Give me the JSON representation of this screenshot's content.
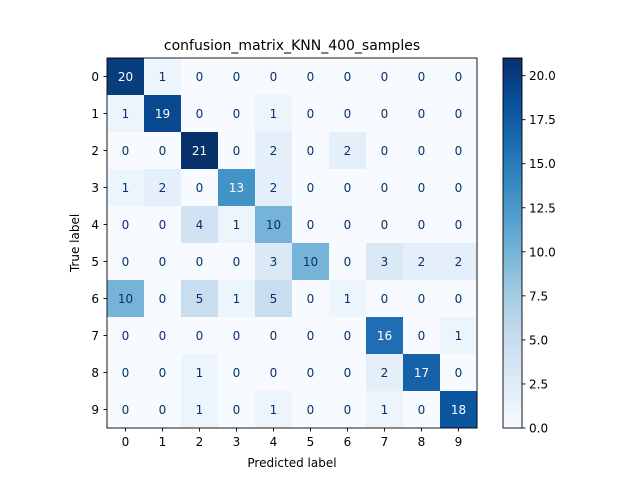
{
  "chart_data": {
    "type": "heatmap",
    "title": "confusion_matrix_KNN_400_samples",
    "xlabel": "Predicted label",
    "ylabel": "True label",
    "x_categories": [
      "0",
      "1",
      "2",
      "3",
      "4",
      "5",
      "6",
      "7",
      "8",
      "9"
    ],
    "y_categories": [
      "0",
      "1",
      "2",
      "3",
      "4",
      "5",
      "6",
      "7",
      "8",
      "9"
    ],
    "matrix": [
      [
        20,
        1,
        0,
        0,
        0,
        0,
        0,
        0,
        0,
        0
      ],
      [
        1,
        19,
        0,
        0,
        1,
        0,
        0,
        0,
        0,
        0
      ],
      [
        0,
        0,
        21,
        0,
        2,
        0,
        2,
        0,
        0,
        0
      ],
      [
        1,
        2,
        0,
        13,
        2,
        0,
        0,
        0,
        0,
        0
      ],
      [
        0,
        0,
        4,
        1,
        10,
        0,
        0,
        0,
        0,
        0
      ],
      [
        0,
        0,
        0,
        0,
        3,
        10,
        0,
        3,
        2,
        2
      ],
      [
        10,
        0,
        5,
        1,
        5,
        0,
        1,
        0,
        0,
        0
      ],
      [
        0,
        0,
        0,
        0,
        0,
        0,
        0,
        16,
        0,
        1
      ],
      [
        0,
        0,
        1,
        0,
        0,
        0,
        0,
        2,
        17,
        0
      ],
      [
        0,
        0,
        1,
        0,
        1,
        0,
        0,
        1,
        0,
        18
      ]
    ],
    "colormap": "Blues",
    "color_range": [
      0,
      21
    ],
    "colorbar_ticks": [
      "0.0",
      "2.5",
      "5.0",
      "7.5",
      "10.0",
      "12.5",
      "15.0",
      "17.5",
      "20.0"
    ],
    "colorbar_tick_values": [
      0,
      2.5,
      5,
      7.5,
      10,
      12.5,
      15,
      17.5,
      20
    ],
    "colors": {
      "low": "#f7fbff",
      "high": "#08306b",
      "text_light": "#ffffff",
      "text_dark": "#08306b"
    }
  }
}
